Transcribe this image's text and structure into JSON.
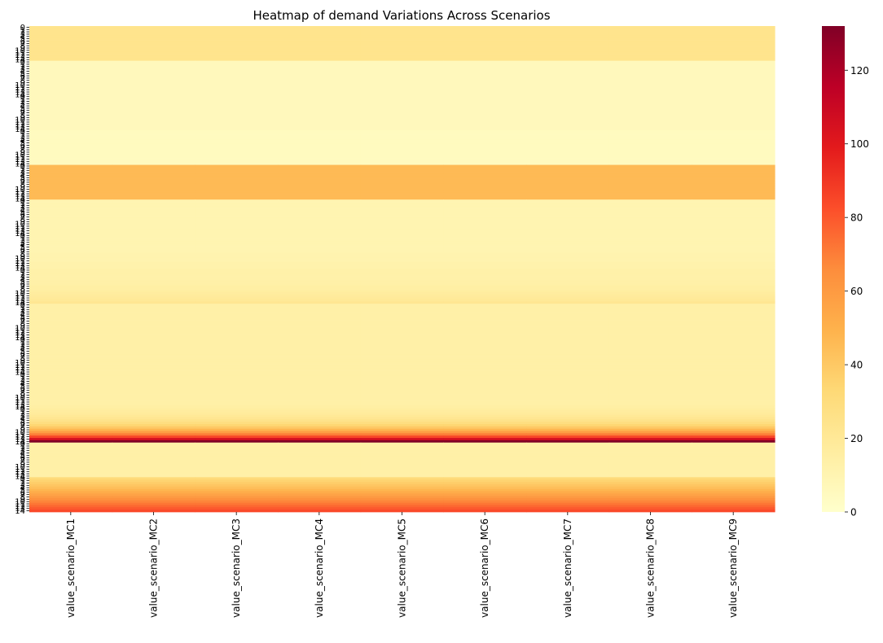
{
  "chart_data": {
    "type": "heatmap",
    "title": "Heatmap of demand Variations Across Scenarios",
    "xlabel": "",
    "ylabel": "",
    "columns": [
      "value_scenario_MC1",
      "value_scenario_MC2",
      "value_scenario_MC3",
      "value_scenario_MC4",
      "value_scenario_MC5",
      "value_scenario_MC6",
      "value_scenario_MC7",
      "value_scenario_MC8",
      "value_scenario_MC9"
    ],
    "row_labels": [
      "0",
      "1",
      "2",
      "3",
      "4",
      "5",
      "6",
      "7",
      "8",
      "9",
      "10",
      "11",
      "12",
      "13",
      "14",
      "0",
      "1",
      "2",
      "3",
      "4",
      "5",
      "6",
      "7",
      "8",
      "9",
      "10",
      "11",
      "12",
      "13",
      "14",
      "0",
      "1",
      "2",
      "3",
      "4",
      "5",
      "6",
      "7",
      "8",
      "9",
      "10",
      "11",
      "12",
      "13",
      "14",
      "0",
      "1",
      "2",
      "3",
      "4",
      "5",
      "6",
      "7",
      "8",
      "9",
      "10",
      "11",
      "12",
      "13",
      "14",
      "0",
      "1",
      "2",
      "3",
      "4",
      "5",
      "6",
      "7",
      "8",
      "9",
      "10",
      "11",
      "12",
      "13",
      "14",
      "0",
      "1",
      "2",
      "3",
      "4",
      "5",
      "6",
      "7",
      "8",
      "9",
      "10",
      "11",
      "12",
      "13",
      "14",
      "0",
      "1",
      "2",
      "3",
      "4",
      "5",
      "6",
      "7",
      "8",
      "9",
      "10",
      "11",
      "12",
      "13",
      "14",
      "0",
      "1",
      "2",
      "3",
      "4",
      "5",
      "6",
      "7",
      "8",
      "9",
      "10",
      "11",
      "12",
      "13",
      "14",
      "0",
      "1",
      "2",
      "3",
      "4",
      "5",
      "6",
      "7",
      "8",
      "9",
      "10",
      "11",
      "12",
      "13",
      "14",
      "0",
      "1",
      "2",
      "3",
      "4",
      "5",
      "6",
      "7",
      "8",
      "9",
      "10",
      "11",
      "12",
      "13",
      "14",
      "0",
      "1",
      "2",
      "3",
      "4",
      "5",
      "6",
      "7",
      "8",
      "9",
      "10",
      "11",
      "12",
      "13",
      "14",
      "0",
      "1",
      "2",
      "3",
      "4",
      "5",
      "6",
      "7",
      "8",
      "9",
      "10",
      "11",
      "12",
      "13",
      "14",
      "0",
      "1",
      "2",
      "3",
      "4",
      "5",
      "6",
      "7",
      "8",
      "9",
      "10",
      "11",
      "12",
      "13",
      "14",
      "0",
      "1",
      "2",
      "3",
      "4",
      "5",
      "6",
      "7",
      "8",
      "9",
      "10",
      "11",
      "12",
      "13",
      "14",
      "0",
      "1",
      "2",
      "3",
      "4",
      "5",
      "6",
      "7",
      "8",
      "9",
      "10",
      "11",
      "12",
      "13",
      "14",
      "0",
      "1",
      "2",
      "3",
      "4",
      "5",
      "6",
      "7",
      "8",
      "9",
      "10",
      "11",
      "12",
      "13",
      "14",
      "0",
      "1",
      "2",
      "3",
      "4",
      "5",
      "6",
      "7",
      "8",
      "9",
      "10",
      "11",
      "12",
      "13",
      "14",
      "0",
      "1",
      "2",
      "3",
      "4",
      "5",
      "6",
      "7",
      "8",
      "9",
      "10",
      "11",
      "12",
      "13",
      "14"
    ],
    "row_values": [
      24,
      24,
      24,
      24,
      24,
      24,
      24,
      24,
      24,
      24,
      24,
      24,
      24,
      24,
      24,
      6,
      6,
      6,
      6,
      6,
      6,
      6,
      6,
      6,
      6,
      6,
      6,
      6,
      6,
      6,
      6,
      6,
      6,
      6,
      6,
      6,
      6,
      6,
      6,
      6,
      6,
      6,
      6,
      6,
      6,
      5,
      5,
      5,
      5,
      5,
      5,
      5,
      5,
      5,
      5,
      5,
      5,
      5,
      5,
      5,
      46,
      46,
      46,
      46,
      46,
      46,
      46,
      46,
      46,
      46,
      46,
      46,
      46,
      46,
      46,
      10,
      10,
      10,
      10,
      10,
      10,
      10,
      10,
      10,
      10,
      10,
      10,
      10,
      10,
      10,
      10,
      10,
      10,
      10,
      10,
      10,
      10,
      10,
      11,
      11,
      11,
      11,
      12,
      12,
      12,
      13,
      13,
      13,
      13,
      13,
      14,
      14,
      15,
      15,
      16,
      17,
      18,
      19,
      20,
      22,
      14,
      14,
      14,
      14,
      14,
      14,
      14,
      14,
      14,
      14,
      14,
      14,
      14,
      14,
      14,
      14,
      14,
      14,
      14,
      14,
      14,
      14,
      14,
      14,
      14,
      14,
      14,
      14,
      14,
      14,
      14,
      14,
      14,
      14,
      14,
      14,
      14,
      14,
      14,
      14,
      14,
      14,
      14,
      14,
      15,
      16,
      17,
      18,
      20,
      22,
      25,
      29,
      34,
      40,
      48,
      58,
      70,
      85,
      105,
      132,
      14,
      14,
      14,
      14,
      14,
      14,
      14,
      14,
      14,
      14,
      14,
      14,
      14,
      14,
      14,
      32,
      35,
      38,
      41,
      44,
      48,
      52,
      56,
      60,
      64,
      68,
      72,
      76,
      80,
      84
    ],
    "colorbar": {
      "min": 0,
      "max": 132,
      "ticks": [
        0,
        20,
        40,
        60,
        80,
        100,
        120
      ]
    },
    "colormap": "YlOrRd",
    "colormap_stops": [
      "#ffffcc",
      "#ffeda0",
      "#fed976",
      "#feb24c",
      "#fd8d3c",
      "#fc4e2a",
      "#e31a1c",
      "#bd0026",
      "#800026"
    ]
  }
}
